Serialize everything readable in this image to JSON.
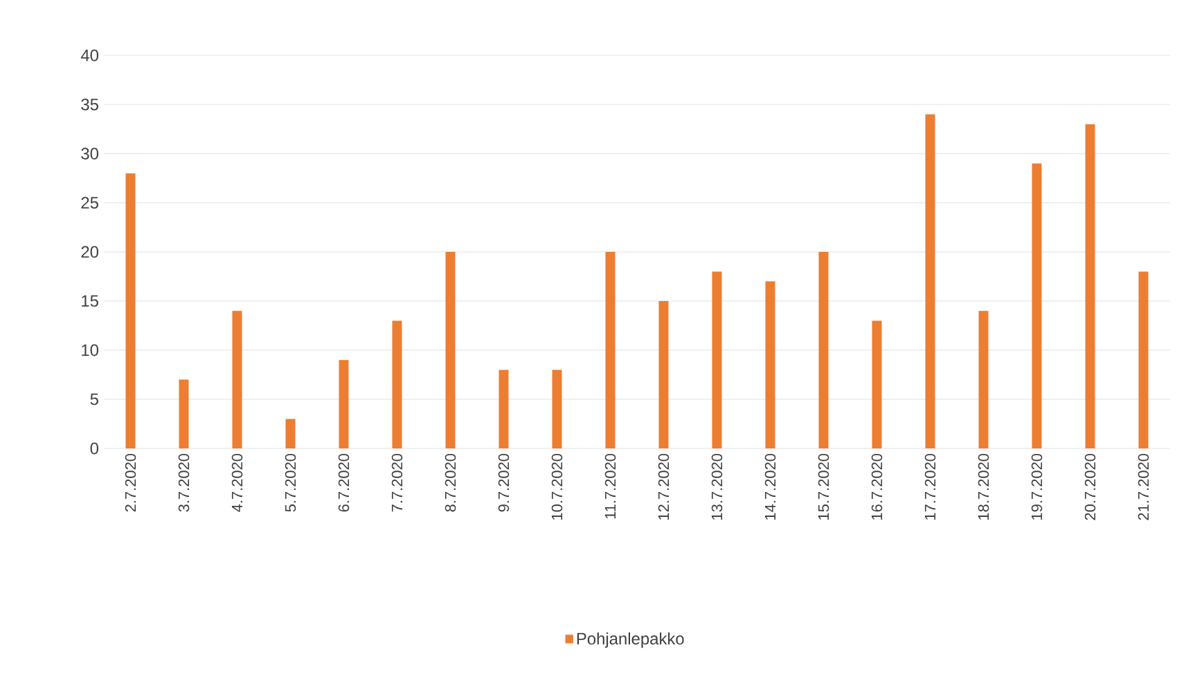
{
  "chart_data": {
    "type": "bar",
    "categories": [
      "2.7.2020",
      "3.7.2020",
      "4.7.2020",
      "5.7.2020",
      "6.7.2020",
      "7.7.2020",
      "8.7.2020",
      "9.7.2020",
      "10.7.2020",
      "11.7.2020",
      "12.7.2020",
      "13.7.2020",
      "14.7.2020",
      "15.7.2020",
      "16.7.2020",
      "17.7.2020",
      "18.7.2020",
      "19.7.2020",
      "20.7.2020",
      "21.7.2020"
    ],
    "series": [
      {
        "name": "Pohjanlepakko",
        "color": "#ed7d31",
        "values": [
          28,
          7,
          14,
          3,
          9,
          13,
          20,
          8,
          8,
          20,
          15,
          18,
          17,
          20,
          13,
          34,
          14,
          29,
          33,
          18
        ]
      }
    ],
    "ylim": [
      0,
      40
    ],
    "yticks": [
      0,
      5,
      10,
      15,
      20,
      25,
      30,
      35,
      40
    ],
    "grid": "y",
    "legend": "bottom"
  }
}
